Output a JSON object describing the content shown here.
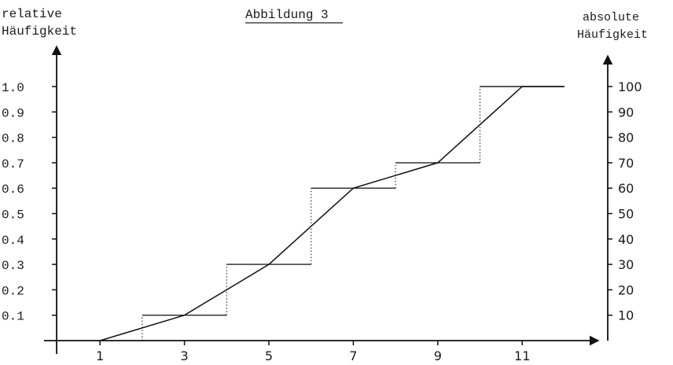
{
  "chart_data": {
    "type": "line",
    "title": "Abbildung 3",
    "ylabel_left": [
      "relative",
      "Häufigkeit"
    ],
    "ylabel_right": [
      "absolute",
      "Häufigkeit"
    ],
    "x_tick_labels": [
      "1",
      "3",
      "5",
      "7",
      "9",
      "11"
    ],
    "x_ticks": [
      1,
      3,
      5,
      7,
      9,
      11
    ],
    "left_tick_labels": [
      "0.1",
      "0.2",
      "0.3",
      "0.4",
      "0.5",
      "0.6",
      "0.7",
      "0.8",
      "0.9",
      "1.0"
    ],
    "left_ticks": [
      0.1,
      0.2,
      0.3,
      0.4,
      0.5,
      0.6,
      0.7,
      0.8,
      0.9,
      1.0
    ],
    "right_tick_labels": [
      "10",
      "20",
      "30",
      "40",
      "50",
      "60",
      "70",
      "80",
      "90",
      "100"
    ],
    "right_ticks": [
      10,
      20,
      30,
      40,
      50,
      60,
      70,
      80,
      90,
      100
    ],
    "ylim_left": [
      0,
      1.0
    ],
    "ylim_right": [
      0,
      100
    ],
    "series": [
      {
        "style": "step",
        "points": [
          {
            "x": 2,
            "y": 0.1
          },
          {
            "x": 4,
            "y": 0.1
          },
          {
            "x": 4,
            "y": 0.3
          },
          {
            "x": 6,
            "y": 0.3
          },
          {
            "x": 6,
            "y": 0.6
          },
          {
            "x": 8,
            "y": 0.6
          },
          {
            "x": 8,
            "y": 0.7
          },
          {
            "x": 10,
            "y": 0.7
          },
          {
            "x": 10,
            "y": 1.0
          },
          {
            "x": 12,
            "y": 1.0
          }
        ]
      },
      {
        "style": "polygon",
        "points": [
          {
            "x": 1,
            "y": 0.0
          },
          {
            "x": 3,
            "y": 0.1
          },
          {
            "x": 5,
            "y": 0.3
          },
          {
            "x": 7,
            "y": 0.6
          },
          {
            "x": 9,
            "y": 0.7
          },
          {
            "x": 11,
            "y": 1.0
          },
          {
            "x": 12,
            "y": 1.0
          }
        ]
      }
    ]
  }
}
